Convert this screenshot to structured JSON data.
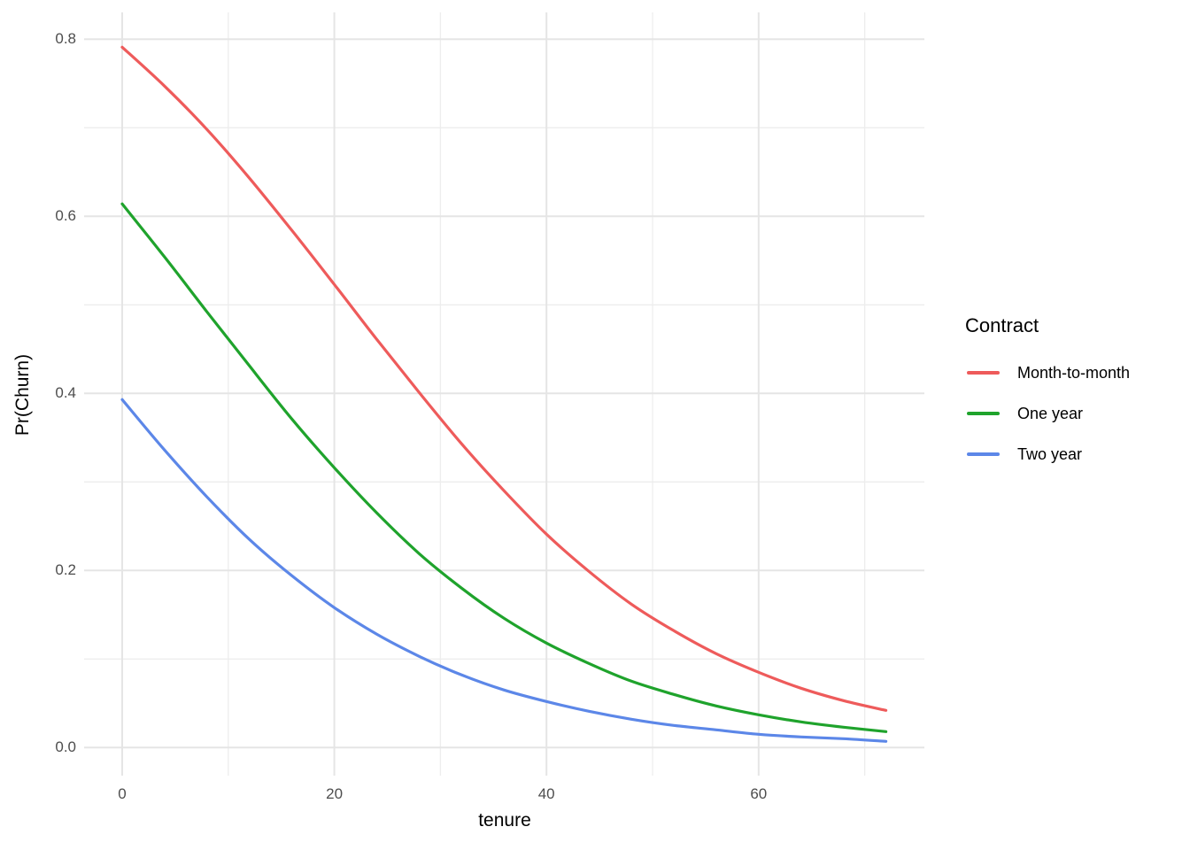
{
  "figure": {
    "background_color": "#ffffff",
    "tick_text_color": "#4d4d4d",
    "title_text_color": "#000000"
  },
  "chart_data": {
    "type": "line",
    "title": "",
    "xlabel": "tenure",
    "ylabel": "Pr(Churn)",
    "legend_title": "Contract",
    "legend_position": "right",
    "grid": "on",
    "xlim": [
      -3.6,
      75.6
    ],
    "ylim": [
      -0.032,
      0.83
    ],
    "x_ticks": [
      0,
      20,
      40,
      60
    ],
    "x_tick_labels": [
      "0",
      "20",
      "40",
      "60"
    ],
    "y_ticks": [
      0.0,
      0.2,
      0.4,
      0.6,
      0.8
    ],
    "y_tick_labels": [
      "0.0",
      "0.2",
      "0.4",
      "0.6",
      "0.8"
    ],
    "x_minor_ticks": [
      10,
      30,
      50,
      70
    ],
    "y_minor_ticks": [
      0.1,
      0.3,
      0.5,
      0.7
    ],
    "gridline_major_color": "#e5e5e5",
    "gridline_minor_color": "#ededed",
    "x": [
      0,
      4,
      8,
      12,
      16,
      20,
      24,
      28,
      32,
      36,
      40,
      44,
      48,
      52,
      56,
      60,
      64,
      68,
      72
    ],
    "series": [
      {
        "name": "Month-to-month",
        "color": "#ee5b5b",
        "values": [
          0.791,
          0.747,
          0.698,
          0.643,
          0.584,
          0.523,
          0.461,
          0.401,
          0.343,
          0.29,
          0.241,
          0.199,
          0.162,
          0.132,
          0.106,
          0.085,
          0.067,
          0.053,
          0.042
        ]
      },
      {
        "name": "One year",
        "color": "#1fa32c",
        "values": [
          0.614,
          0.554,
          0.492,
          0.431,
          0.371,
          0.316,
          0.265,
          0.219,
          0.18,
          0.146,
          0.118,
          0.095,
          0.075,
          0.06,
          0.047,
          0.037,
          0.029,
          0.023,
          0.018
        ]
      },
      {
        "name": "Two year",
        "color": "#5c87e8",
        "values": [
          0.393,
          0.336,
          0.283,
          0.235,
          0.194,
          0.158,
          0.128,
          0.103,
          0.082,
          0.065,
          0.052,
          0.041,
          0.032,
          0.025,
          0.02,
          0.015,
          0.012,
          0.01,
          0.007
        ]
      }
    ]
  }
}
